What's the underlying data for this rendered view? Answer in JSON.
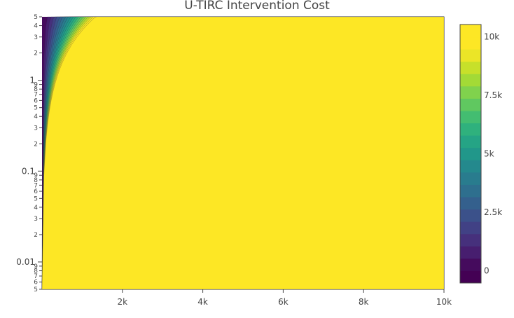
{
  "chart_data": {
    "type": "contour",
    "title": "U-TIRC Intervention Cost",
    "xlabel": "",
    "ylabel": "",
    "x_range": [
      0,
      10000
    ],
    "y_range": [
      0.005,
      5
    ],
    "y_scale": "log",
    "x_ticks": [
      {
        "value": 2000,
        "label": "2k"
      },
      {
        "value": 4000,
        "label": "4k"
      },
      {
        "value": 6000,
        "label": "6k"
      },
      {
        "value": 8000,
        "label": "8k"
      },
      {
        "value": 10000,
        "label": "10k"
      }
    ],
    "y_major_ticks": [
      {
        "value": 0.01,
        "label": "0.01"
      },
      {
        "value": 0.1,
        "label": "0.1"
      },
      {
        "value": 1,
        "label": "1"
      }
    ],
    "y_minor_ticks": [
      {
        "value": 0.005,
        "label": "5"
      },
      {
        "value": 0.006,
        "label": "6"
      },
      {
        "value": 0.007,
        "label": "7"
      },
      {
        "value": 0.008,
        "label": "8"
      },
      {
        "value": 0.009,
        "label": "9"
      },
      {
        "value": 0.02,
        "label": "2"
      },
      {
        "value": 0.03,
        "label": "3"
      },
      {
        "value": 0.04,
        "label": "4"
      },
      {
        "value": 0.05,
        "label": "5"
      },
      {
        "value": 0.06,
        "label": "6"
      },
      {
        "value": 0.07,
        "label": "7"
      },
      {
        "value": 0.08,
        "label": "8"
      },
      {
        "value": 0.09,
        "label": "9"
      },
      {
        "value": 0.2,
        "label": "2"
      },
      {
        "value": 0.3,
        "label": "3"
      },
      {
        "value": 0.4,
        "label": "4"
      },
      {
        "value": 0.5,
        "label": "5"
      },
      {
        "value": 0.6,
        "label": "6"
      },
      {
        "value": 0.7,
        "label": "7"
      },
      {
        "value": 0.8,
        "label": "8"
      },
      {
        "value": 0.9,
        "label": "9"
      },
      {
        "value": 2,
        "label": "2"
      },
      {
        "value": 3,
        "label": "3"
      },
      {
        "value": 4,
        "label": "4"
      },
      {
        "value": 5,
        "label": "5"
      }
    ],
    "z_range": [
      0,
      10000
    ],
    "contour_start": 0,
    "contour_step": 500,
    "surface": {
      "form": "z = k * x^1.2 * y^-1",
      "k": 8.47,
      "x_exponent": 1.2,
      "y_exponent": -1
    },
    "colorbar": {
      "ticks": [
        {
          "value": 0,
          "label": "0"
        },
        {
          "value": 2500,
          "label": "2.5k"
        },
        {
          "value": 5000,
          "label": "5k"
        },
        {
          "value": 7500,
          "label": "7.5k"
        },
        {
          "value": 10000,
          "label": "10k"
        }
      ],
      "colorscale": [
        [
          0.0,
          "#440154"
        ],
        [
          0.1,
          "#482878"
        ],
        [
          0.2,
          "#3e4989"
        ],
        [
          0.3,
          "#31688e"
        ],
        [
          0.4,
          "#26828e"
        ],
        [
          0.5,
          "#1f9e89"
        ],
        [
          0.6,
          "#35b779"
        ],
        [
          0.7,
          "#6ece58"
        ],
        [
          0.8,
          "#b5de2b"
        ],
        [
          0.9,
          "#fde725"
        ],
        [
          1.0,
          "#fde725"
        ]
      ]
    }
  }
}
